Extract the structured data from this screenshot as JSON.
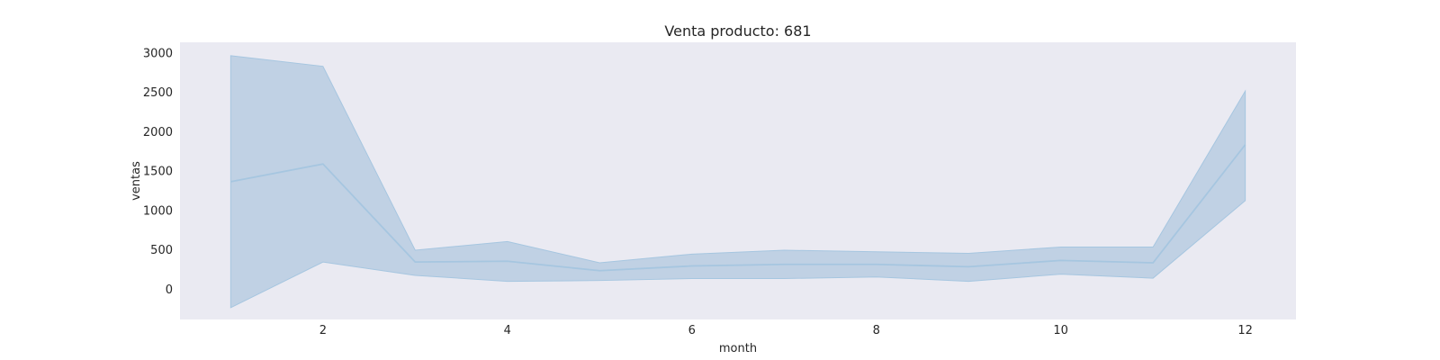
{
  "chart_data": {
    "type": "line",
    "title": "Venta producto: 681",
    "xlabel": "month",
    "ylabel": "ventas",
    "x": [
      1,
      2,
      3,
      4,
      5,
      6,
      7,
      8,
      9,
      10,
      11,
      12
    ],
    "series": [
      {
        "values": [
          1360,
          1585,
          340,
          350,
          230,
          290,
          310,
          310,
          280,
          360,
          330,
          1830
        ],
        "ci_lower": [
          -240,
          340,
          170,
          95,
          105,
          130,
          130,
          150,
          95,
          185,
          135,
          1120
        ],
        "ci_upper": [
          2960,
          2825,
          490,
          600,
          330,
          440,
          490,
          470,
          450,
          530,
          530,
          2510
        ]
      }
    ],
    "xlim": [
      0.45,
      12.55
    ],
    "ylim": [
      -390,
      3130
    ],
    "xticks": [
      2,
      4,
      6,
      8,
      10,
      12
    ],
    "yticks": [
      0,
      500,
      1000,
      1500,
      2000,
      2500,
      3000
    ],
    "grid": false,
    "colors": {
      "background": "#eaeaf2",
      "line": "#a6c6e0",
      "band": "#b8cde2"
    }
  }
}
